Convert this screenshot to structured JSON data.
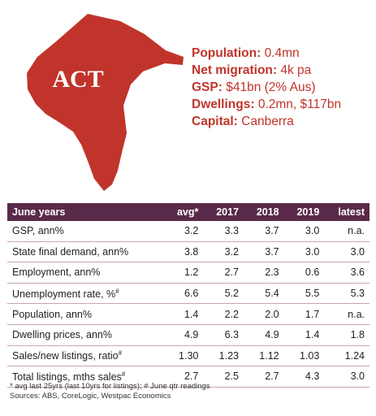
{
  "map": {
    "label": "ACT",
    "color": "#c0342b"
  },
  "facts": [
    {
      "label": "Population:",
      "value": "0.4mn"
    },
    {
      "label": "Net migration:",
      "value": "4k pa"
    },
    {
      "label": "GSP:",
      "value": "$41bn (2% Aus)"
    },
    {
      "label": "Dwellings:",
      "value": "0.2mn, $117bn"
    },
    {
      "label": "Capital:",
      "value": "Canberra"
    }
  ],
  "table": {
    "headers": [
      "June years",
      "avg*",
      "2017",
      "2018",
      "2019",
      "latest"
    ],
    "rows": [
      {
        "label": "GSP, ann%",
        "sup": "",
        "values": [
          "3.2",
          "3.3",
          "3.7",
          "3.0",
          "n.a."
        ]
      },
      {
        "label": "State final demand, ann%",
        "sup": "",
        "values": [
          "3.8",
          "3.2",
          "3.7",
          "3.0",
          "3.0"
        ]
      },
      {
        "label": "Employment, ann%",
        "sup": "",
        "values": [
          "1.2",
          "2.7",
          "2.3",
          "0.6",
          "3.6"
        ]
      },
      {
        "label": "Unemployment rate, %",
        "sup": "#",
        "values": [
          "6.6",
          "5.2",
          "5.4",
          "5.5",
          "5.3"
        ]
      },
      {
        "label": "Population, ann%",
        "sup": "",
        "values": [
          "1.4",
          "2.2",
          "2.0",
          "1.7",
          "n.a."
        ]
      },
      {
        "label": "Dwelling prices, ann%",
        "sup": "",
        "values": [
          "4.9",
          "6.3",
          "4.9",
          "1.4",
          "1.8"
        ]
      },
      {
        "label": "Sales/new listings, ratio",
        "sup": "#",
        "values": [
          "1.30",
          "1.23",
          "1.12",
          "1.03",
          "1.24"
        ]
      },
      {
        "label": "Total listings, mths sales",
        "sup": "#",
        "values": [
          "2.7",
          "2.5",
          "2.7",
          "4.3",
          "3.0"
        ]
      }
    ]
  },
  "notes": {
    "line1": "* avg last 25yrs (last 10yrs for listings); # June qtr readings",
    "line2": "Sources: ABS, CoreLogic, Westpac Economics"
  }
}
